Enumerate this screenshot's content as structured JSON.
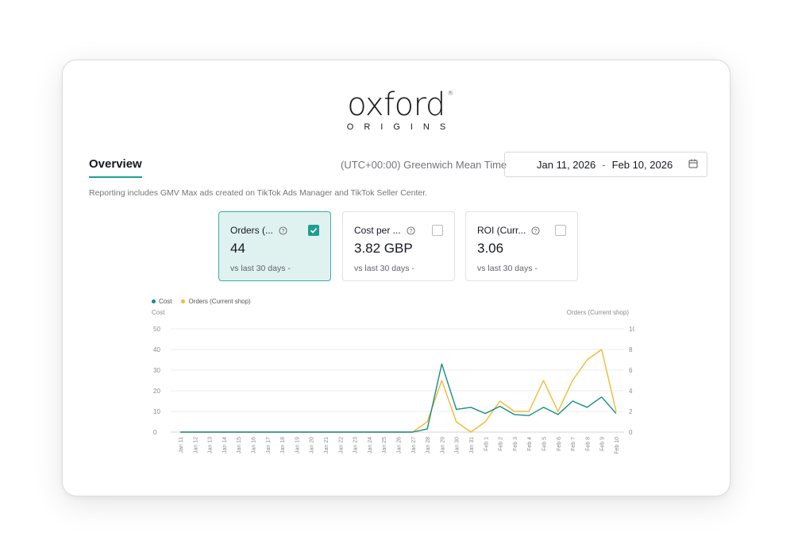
{
  "brand": {
    "name": "oxford",
    "registered": "®",
    "tagline": "ORIGINS"
  },
  "tabs": {
    "overview": "Overview"
  },
  "timezone": "(UTC+00:00) Greenwich Mean Time",
  "date_range": {
    "start": "Jan 11, 2026",
    "separator": "-",
    "end": "Feb 10, 2026",
    "icon": "calendar-icon"
  },
  "note": "Reporting includes GMV Max ads created on TikTok Ads Manager and TikTok Seller Center.",
  "metrics": [
    {
      "title": "Orders (...",
      "value": "44",
      "compare": "vs last 30 days -",
      "checked": true
    },
    {
      "title": "Cost per ...",
      "value": "3.82 GBP",
      "compare": "vs last 30 days -",
      "checked": false
    },
    {
      "title": "ROI (Curr...",
      "value": "3.06",
      "compare": "vs last 30 days -",
      "checked": false
    }
  ],
  "colors": {
    "accent": "#1d9e93",
    "cost": "#138d86",
    "orders": "#f2b934",
    "grid": "#ececec"
  },
  "chart_data": {
    "type": "line",
    "legend_position": "top-left",
    "left_axis_label": "Cost",
    "right_axis_label": "Orders (Current shop)",
    "left_ylim": [
      0,
      50
    ],
    "right_ylim": [
      0,
      10
    ],
    "left_ticks": [
      "0",
      "10",
      "20",
      "30",
      "40",
      "50"
    ],
    "right_ticks": [
      "0",
      "2",
      "4",
      "6",
      "8",
      "10"
    ],
    "x": [
      "Jan 11",
      "Jan 12",
      "Jan 13",
      "Jan 14",
      "Jan 15",
      "Jan 16",
      "Jan 17",
      "Jan 18",
      "Jan 19",
      "Jan 20",
      "Jan 21",
      "Jan 22",
      "Jan 23",
      "Jan 24",
      "Jan 25",
      "Jan 26",
      "Jan 27",
      "Jan 28",
      "Jan 29",
      "Jan 30",
      "Jan 31",
      "Feb 1",
      "Feb 2",
      "Feb 3",
      "Feb 4",
      "Feb 5",
      "Feb 6",
      "Feb 7",
      "Feb 8",
      "Feb 9",
      "Feb 10"
    ],
    "series": [
      {
        "name": "Cost",
        "axis": "left",
        "values": [
          0,
          0,
          0,
          0,
          0,
          0,
          0,
          0,
          0,
          0,
          0,
          0,
          0,
          0,
          0,
          0,
          0,
          1.5,
          33,
          11,
          12,
          9,
          12.5,
          8.5,
          8,
          12,
          8.5,
          15,
          12,
          17,
          9
        ]
      },
      {
        "name": "Orders (Current shop)",
        "axis": "right",
        "values": [
          0,
          0,
          0,
          0,
          0,
          0,
          0,
          0,
          0,
          0,
          0,
          0,
          0,
          0,
          0,
          0,
          0,
          1,
          5,
          1,
          0,
          1,
          3,
          2,
          2,
          5,
          2,
          5,
          7,
          8,
          2
        ]
      }
    ]
  }
}
